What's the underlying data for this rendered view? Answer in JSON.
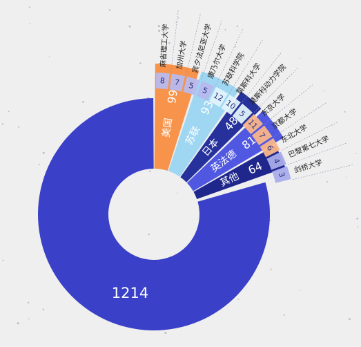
{
  "chart_data": {
    "type": "pie",
    "subtype": "donut",
    "title": "",
    "grid": false,
    "legend": "none",
    "slices": [
      {
        "label": "",
        "value": 1214,
        "display": "1214",
        "color": "#3a40c8"
      },
      {
        "label": "美国",
        "value": 99,
        "display": "99",
        "color": "#f7934a"
      },
      {
        "label": "苏联",
        "value": 93,
        "display": "93",
        "color": "#9fd7f2"
      },
      {
        "label": "日本",
        "value": 48,
        "display": "48",
        "color": "#27319c"
      },
      {
        "label": "英法德",
        "value": 81,
        "display": "81",
        "color": "#5058e2"
      },
      {
        "label": "其他",
        "value": 64,
        "display": "64",
        "color": "#1f278c"
      }
    ],
    "breakdown": [
      {
        "parent": "美国",
        "label": "麻省理工大学",
        "value": 8,
        "display": "8",
        "color": "#b7b9ee"
      },
      {
        "parent": "美国",
        "label": "加州大学",
        "value": 7,
        "display": "7",
        "color": "#b7b9ee"
      },
      {
        "parent": "美国",
        "label": "宾夕法尼亚大学",
        "value": 5,
        "display": "5",
        "color": "#b7b9ee"
      },
      {
        "parent": "美国",
        "label": "康乃尔大学",
        "value": 5,
        "display": "5",
        "color": "#b7b9ee"
      },
      {
        "parent": "苏联",
        "label": "苏联科学院",
        "value": 12,
        "display": "12",
        "color": "#e1f3fb"
      },
      {
        "parent": "苏联",
        "label": "莫斯科大学",
        "value": 10,
        "display": "10",
        "color": "#e1f3fb"
      },
      {
        "parent": "苏联",
        "label": "莫斯科动力学院",
        "value": 5,
        "display": "5",
        "color": "#e1f3fb"
      },
      {
        "parent": "日本",
        "label": "东京大学",
        "value": 11,
        "display": "11",
        "color": "#f9b58a"
      },
      {
        "parent": "日本",
        "label": "京都大学",
        "value": 7,
        "display": "7",
        "color": "#f9b58a"
      },
      {
        "parent": "日本",
        "label": "东北大学",
        "value": 6,
        "display": "6",
        "color": "#f9b58a"
      },
      {
        "parent": "英法德",
        "label": "巴黎第七大学",
        "value": 4,
        "display": "4",
        "color": "#a9acea"
      },
      {
        "parent": "英法德",
        "label": "剑桥大学",
        "value": 3,
        "display": "3",
        "color": "#a9acea"
      }
    ]
  }
}
